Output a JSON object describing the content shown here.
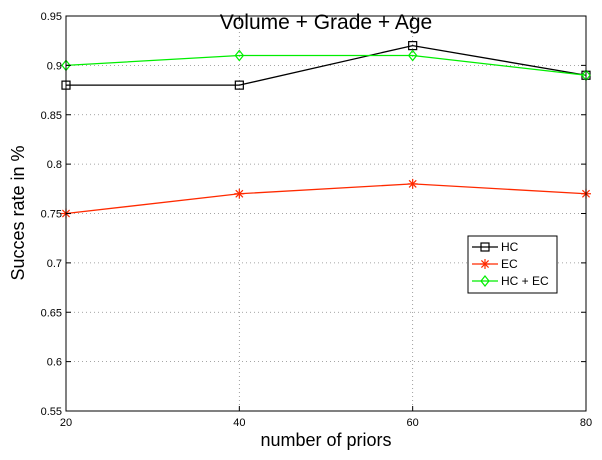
{
  "chart_data": {
    "type": "line",
    "title": "Volume + Grade + Age",
    "xlabel": "number of priors",
    "ylabel": "Succes rate in %",
    "x": [
      20,
      40,
      60,
      80
    ],
    "xlim": [
      20,
      80
    ],
    "ylim": [
      0.55,
      0.95
    ],
    "xticks": [
      20,
      40,
      60,
      80
    ],
    "xtick_labels": [
      "20",
      "40",
      "60",
      "80"
    ],
    "yticks": [
      0.55,
      0.6,
      0.65,
      0.7,
      0.75,
      0.8,
      0.85,
      0.9,
      0.95
    ],
    "ytick_labels": [
      "0.55",
      "0.6",
      "0.65",
      "0.7",
      "0.75",
      "0.8",
      "0.85",
      "0.9",
      "0.95"
    ],
    "grid": true,
    "legend_position": "right",
    "series": [
      {
        "name": "HC",
        "values": [
          0.88,
          0.88,
          0.92,
          0.89
        ],
        "color": "#000000",
        "marker": "square"
      },
      {
        "name": "EC",
        "values": [
          0.75,
          0.77,
          0.78,
          0.77
        ],
        "color": "#ff2a00",
        "marker": "star"
      },
      {
        "name": "HC + EC",
        "values": [
          0.9,
          0.91,
          0.91,
          0.89
        ],
        "color": "#00ee00",
        "marker": "diamond"
      }
    ]
  }
}
